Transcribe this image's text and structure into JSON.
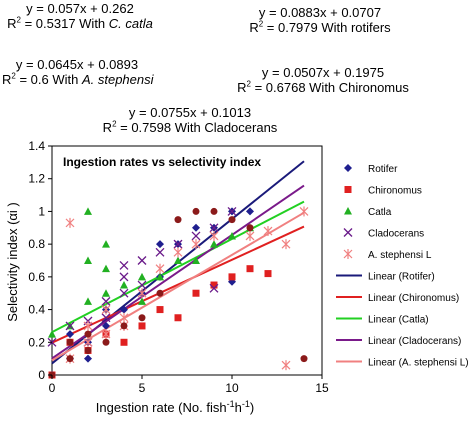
{
  "equations": [
    {
      "id": "catla",
      "line1": "y = 0.057x + 0.262",
      "r2pre": "R",
      "r2sup": "2",
      "r2val": " = 0.5317 With ",
      "species": "C. catla",
      "italic": true
    },
    {
      "id": "rotifers",
      "line1": "y = 0.0883x + 0.0707",
      "r2pre": "R",
      "r2sup": "2",
      "r2val": " = 0.7979 With rotifers",
      "species": "",
      "italic": false
    },
    {
      "id": "steph",
      "line1": "y = 0.0645x + 0.0893",
      "r2pre": "R",
      "r2sup": "2",
      "r2val": " = 0.6 With ",
      "species": "A. stephensi",
      "italic": true
    },
    {
      "id": "chiron",
      "line1": "y = 0.0507x + 0.1975",
      "r2pre": "R",
      "r2sup": "2",
      "r2val": " = 0.6768 With Chironomus",
      "species": "",
      "italic": false
    },
    {
      "id": "clad",
      "line1": "y = 0.0755x + 0.1013",
      "r2pre": "R",
      "r2sup": "2",
      "r2val": " = 0.7598 With Cladocerans",
      "species": "",
      "italic": false
    }
  ],
  "chart_data": {
    "type": "scatter",
    "title": "Ingestion rates vs selectivity index",
    "xlabel": "Ingestion rate (No. fish",
    "xlabel_sup1": "-1",
    "xlabel_mid": "h",
    "xlabel_sup2": "-1",
    "xlabel_end": ")",
    "ylabel": "Selectivity index (αi )",
    "xlim": [
      0,
      15
    ],
    "ylim": [
      0,
      1.4
    ],
    "xticks": [
      "0",
      "5",
      "10",
      "15"
    ],
    "xtick_values": [
      0,
      5,
      10,
      15
    ],
    "yticks": [
      "0",
      "0.2",
      "0.4",
      "0.6",
      "0.8",
      "1",
      "1.2",
      "1.4"
    ],
    "ytick_values": [
      0,
      0.2,
      0.4,
      0.6,
      0.8,
      1.0,
      1.2,
      1.4
    ],
    "grid": false,
    "legend_position": "right",
    "series": [
      {
        "name": "Rotifer",
        "marker": "diamond",
        "color": "#1f1f8f",
        "points": [
          [
            0,
            0
          ],
          [
            1,
            0.1
          ],
          [
            1,
            0.25
          ],
          [
            2,
            0.1
          ],
          [
            2,
            0.2
          ],
          [
            3,
            0.3
          ],
          [
            3,
            0.4
          ],
          [
            4,
            0.4
          ],
          [
            5,
            0.5
          ],
          [
            6,
            0.6
          ],
          [
            6,
            0.8
          ],
          [
            7,
            0.8
          ],
          [
            8,
            0.9
          ],
          [
            9,
            0.9
          ],
          [
            10,
            1.0
          ],
          [
            11,
            1.0
          ],
          [
            10,
            0.57
          ]
        ]
      },
      {
        "name": "Chironomus",
        "marker": "square",
        "color": "#e02020",
        "points": [
          [
            0,
            0
          ],
          [
            1,
            0.2
          ],
          [
            2,
            0.15
          ],
          [
            3,
            0.25
          ],
          [
            4,
            0.2
          ],
          [
            5,
            0.3
          ],
          [
            6,
            0.4
          ],
          [
            7,
            0.35
          ],
          [
            8,
            0.5
          ],
          [
            9,
            0.55
          ],
          [
            10,
            0.6
          ],
          [
            11,
            0.65
          ],
          [
            12,
            0.62
          ]
        ]
      },
      {
        "name": "Catla",
        "marker": "triangle",
        "color": "#22b022",
        "points": [
          [
            0,
            0.25
          ],
          [
            1,
            0.3
          ],
          [
            2,
            0.45
          ],
          [
            2,
            0.7
          ],
          [
            2,
            1.0
          ],
          [
            3,
            0.5
          ],
          [
            3,
            0.65
          ],
          [
            3,
            0.8
          ],
          [
            4,
            0.55
          ],
          [
            5,
            0.6
          ],
          [
            5,
            0.45
          ],
          [
            6,
            0.6
          ],
          [
            7,
            0.7
          ],
          [
            8,
            0.7
          ],
          [
            9,
            0.8
          ],
          [
            10,
            0.85
          ],
          [
            11,
            0.9
          ]
        ]
      },
      {
        "name": "Cladocerans",
        "marker": "x",
        "color": "#6a1a8a",
        "points": [
          [
            0,
            0.2
          ],
          [
            1,
            0.3
          ],
          [
            2,
            0.2
          ],
          [
            2,
            0.33
          ],
          [
            3,
            0.35
          ],
          [
            3,
            0.45
          ],
          [
            4,
            0.5
          ],
          [
            4,
            0.6
          ],
          [
            4,
            0.67
          ],
          [
            5,
            0.55
          ],
          [
            5,
            0.7
          ],
          [
            6,
            0.75
          ],
          [
            7,
            0.8
          ],
          [
            8,
            0.85
          ],
          [
            9,
            0.9
          ],
          [
            9,
            0.53
          ],
          [
            10,
            1.0
          ]
        ]
      },
      {
        "name": "A. stephensi L",
        "marker": "asterisk",
        "color": "#f08080",
        "points": [
          [
            1,
            0.93
          ],
          [
            1,
            0.1
          ],
          [
            2,
            0.2
          ],
          [
            2,
            0.3
          ],
          [
            3,
            0.25
          ],
          [
            3,
            0.4
          ],
          [
            4,
            0.35
          ],
          [
            4,
            0.3
          ],
          [
            5,
            0.5
          ],
          [
            6,
            0.65
          ],
          [
            7,
            0.75
          ],
          [
            8,
            0.8
          ],
          [
            9,
            0.85
          ],
          [
            11,
            0.85
          ],
          [
            12,
            0.88
          ],
          [
            13,
            0.8
          ],
          [
            13,
            0.06
          ],
          [
            14,
            1.0
          ]
        ]
      },
      {
        "name": "",
        "marker": "circle",
        "color": "#8b1a1a",
        "points": [
          [
            0,
            0
          ],
          [
            1,
            0.1
          ],
          [
            1,
            0.2
          ],
          [
            2,
            0.15
          ],
          [
            2,
            0.25
          ],
          [
            3,
            0.2
          ],
          [
            4,
            0.3
          ],
          [
            5,
            0.35
          ],
          [
            6,
            0.5
          ],
          [
            7,
            0.95
          ],
          [
            8,
            1.0
          ],
          [
            9,
            1.0
          ],
          [
            10,
            0.95
          ],
          [
            11,
            0.9
          ],
          [
            14,
            0.1
          ]
        ]
      }
    ],
    "trendlines": [
      {
        "name": "Linear (Rotifer)",
        "slope": 0.0883,
        "intercept": 0.0707,
        "color": "#1a1a7a",
        "x_end": 14
      },
      {
        "name": "Linear (Chironomus)",
        "slope": 0.0507,
        "intercept": 0.1975,
        "color": "#e02020",
        "x_end": 14
      },
      {
        "name": "Linear (Catla)",
        "slope": 0.057,
        "intercept": 0.262,
        "color": "#22d022",
        "x_end": 14
      },
      {
        "name": "Linear (Cladocerans)",
        "slope": 0.0755,
        "intercept": 0.1013,
        "color": "#7a1a8a",
        "x_end": 14
      },
      {
        "name": "Linear (A. stephensi L)",
        "slope": 0.0645,
        "intercept": 0.0893,
        "color": "#f08080",
        "x_end": 14
      }
    ]
  }
}
